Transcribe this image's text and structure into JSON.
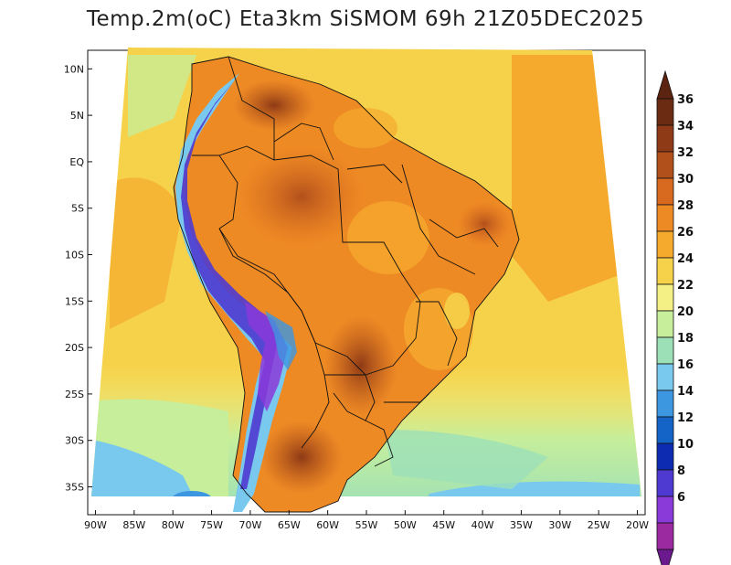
{
  "title": "Temp.2m(oC) Eta3km SiSMOM 69h 21Z05DEC2025",
  "map": {
    "variable": "2 m air temperature",
    "units": "oC",
    "region": "South America",
    "lat_range": [
      -38,
      12
    ],
    "lon_range": [
      -91,
      -19
    ],
    "lat_ticks": [
      "10N",
      "5N",
      "EQ",
      "5S",
      "10S",
      "15S",
      "20S",
      "25S",
      "30S",
      "35S"
    ],
    "lat_tick_values": [
      10,
      5,
      0,
      -5,
      -10,
      -15,
      -20,
      -25,
      -30,
      -35
    ],
    "lon_ticks": [
      "90W",
      "85W",
      "80W",
      "75W",
      "70W",
      "65W",
      "60W",
      "55W",
      "50W",
      "45W",
      "40W",
      "35W",
      "30W",
      "25W",
      "20W"
    ],
    "lon_tick_values": [
      -90,
      -85,
      -80,
      -75,
      -70,
      -65,
      -60,
      -55,
      -50,
      -45,
      -40,
      -35,
      -30,
      -25,
      -20
    ]
  },
  "colorbar": {
    "labels": [
      "36",
      "34",
      "32",
      "30",
      "28",
      "26",
      "24",
      "22",
      "20",
      "18",
      "16",
      "14",
      "12",
      "10",
      "8",
      "6"
    ],
    "colors": [
      "#6b2a12",
      "#8e3a16",
      "#b2501c",
      "#d86a20",
      "#ee8a24",
      "#f5aa2e",
      "#f6d24a",
      "#f5f085",
      "#c6ee9b",
      "#9ce0b8",
      "#79c8ee",
      "#3d96e0",
      "#1463c6",
      "#0d2bb0",
      "#4e3ad0",
      "#8a3ad8",
      "#9b2aa0"
    ],
    "top_arrow_color": "#5c2410",
    "bottom_arrow_color": "#6a1a8c"
  }
}
